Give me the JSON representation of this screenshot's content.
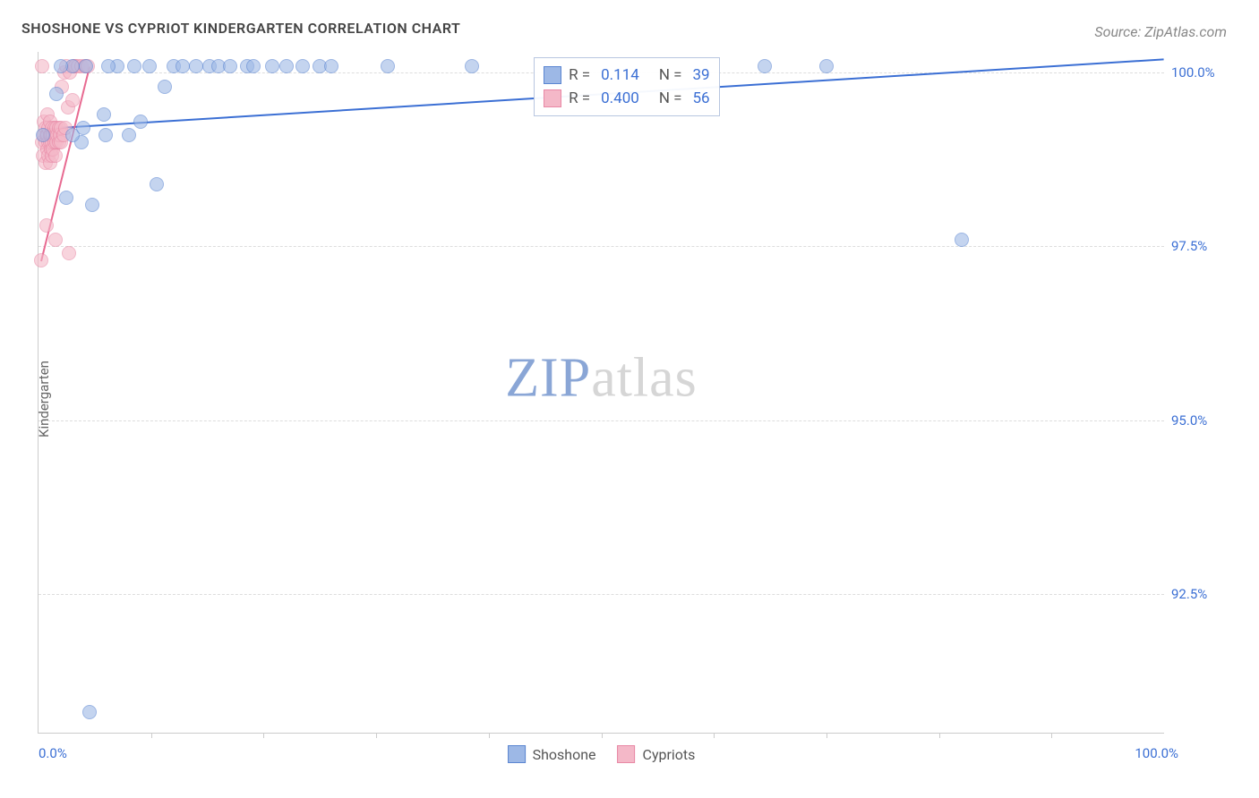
{
  "title": "SHOSHONE VS CYPRIOT KINDERGARTEN CORRELATION CHART",
  "source_label": "Source: ZipAtlas.com",
  "ylabel": "Kindergarten",
  "watermark": {
    "left": "ZIP",
    "right": "atlas",
    "color_left": "#8aa6d6",
    "color_right": "#d6d6d6"
  },
  "chart": {
    "type": "scatter",
    "xlim": [
      0,
      100
    ],
    "ylim": [
      90.5,
      100.3
    ],
    "x_unit": "%",
    "y_unit": "%",
    "x_ticks_major": [
      10,
      20,
      30,
      40,
      50,
      60,
      70,
      80,
      90
    ],
    "x_lim_labels": {
      "min": "0.0%",
      "max": "100.0%"
    },
    "y_gridlines": [
      92.5,
      95.0,
      97.5,
      100.0
    ],
    "y_tick_labels": [
      "92.5%",
      "95.0%",
      "97.5%",
      "100.0%"
    ],
    "grid_color": "#dddddd",
    "axis_color": "#cccccc",
    "tick_label_color": "#3b6fd4",
    "background_color": "#ffffff",
    "marker_radius": 8,
    "marker_opacity": 0.6,
    "series": [
      {
        "name": "Shoshone",
        "fill": "#9db8e6",
        "stroke": "#5a85d1",
        "R": "0.114",
        "N": "39",
        "trend": {
          "x1": 0.5,
          "y1": 99.2,
          "x2": 100,
          "y2": 100.2,
          "color": "#3b6fd4",
          "width": 2
        },
        "points": [
          [
            0.4,
            99.1
          ],
          [
            4.2,
            100.1
          ],
          [
            1.6,
            99.7
          ],
          [
            7.0,
            100.1
          ],
          [
            3.8,
            99.0
          ],
          [
            2.5,
            98.2
          ],
          [
            3.0,
            100.1
          ],
          [
            5.8,
            99.4
          ],
          [
            8.5,
            100.1
          ],
          [
            9.9,
            100.1
          ],
          [
            11.2,
            99.8
          ],
          [
            12.0,
            100.1
          ],
          [
            12.8,
            100.1
          ],
          [
            14.0,
            100.1
          ],
          [
            15.2,
            100.1
          ],
          [
            16.0,
            100.1
          ],
          [
            17.0,
            100.1
          ],
          [
            18.5,
            100.1
          ],
          [
            19.1,
            100.1
          ],
          [
            20.8,
            100.1
          ],
          [
            22.0,
            100.1
          ],
          [
            23.5,
            100.1
          ],
          [
            25.0,
            100.1
          ],
          [
            26.0,
            100.1
          ],
          [
            31.0,
            100.1
          ],
          [
            38.5,
            100.1
          ],
          [
            64.5,
            100.1
          ],
          [
            70.0,
            100.1
          ],
          [
            10.5,
            98.4
          ],
          [
            4.8,
            98.1
          ],
          [
            4.5,
            90.8
          ],
          [
            82.0,
            97.6
          ],
          [
            6.2,
            100.1
          ],
          [
            8.0,
            99.1
          ],
          [
            3.0,
            99.1
          ],
          [
            4.0,
            99.2
          ],
          [
            6.0,
            99.1
          ],
          [
            9.1,
            99.3
          ],
          [
            2.0,
            100.1
          ]
        ]
      },
      {
        "name": "Cypriots",
        "fill": "#f4b8c8",
        "stroke": "#e888a5",
        "R": "0.400",
        "N": "56",
        "trend": {
          "x1": 0.2,
          "y1": 97.3,
          "x2": 4.5,
          "y2": 100.1,
          "color": "#e86a91",
          "width": 2
        },
        "points": [
          [
            0.2,
            97.3
          ],
          [
            0.3,
            99.0
          ],
          [
            0.3,
            100.1
          ],
          [
            0.4,
            98.8
          ],
          [
            0.5,
            99.1
          ],
          [
            0.5,
            99.3
          ],
          [
            0.6,
            98.7
          ],
          [
            0.6,
            99.0
          ],
          [
            0.6,
            99.2
          ],
          [
            0.7,
            97.8
          ],
          [
            0.7,
            99.1
          ],
          [
            0.8,
            98.9
          ],
          [
            0.8,
            99.1
          ],
          [
            0.8,
            99.4
          ],
          [
            0.9,
            98.8
          ],
          [
            0.9,
            99.0
          ],
          [
            0.9,
            99.2
          ],
          [
            1.0,
            98.7
          ],
          [
            1.0,
            99.0
          ],
          [
            1.0,
            99.1
          ],
          [
            1.0,
            99.3
          ],
          [
            1.1,
            98.9
          ],
          [
            1.1,
            99.1
          ],
          [
            1.2,
            98.8
          ],
          [
            1.2,
            99.0
          ],
          [
            1.2,
            99.2
          ],
          [
            1.3,
            98.9
          ],
          [
            1.3,
            99.1
          ],
          [
            1.4,
            99.0
          ],
          [
            1.4,
            99.2
          ],
          [
            1.5,
            98.8
          ],
          [
            1.5,
            99.1
          ],
          [
            1.6,
            99.0
          ],
          [
            1.6,
            99.2
          ],
          [
            1.7,
            99.1
          ],
          [
            1.8,
            99.0
          ],
          [
            1.8,
            99.2
          ],
          [
            1.9,
            99.1
          ],
          [
            2.0,
            99.0
          ],
          [
            2.0,
            99.2
          ],
          [
            2.1,
            99.8
          ],
          [
            2.2,
            99.1
          ],
          [
            2.3,
            100.0
          ],
          [
            2.4,
            99.2
          ],
          [
            2.5,
            100.1
          ],
          [
            2.6,
            99.5
          ],
          [
            2.8,
            100.0
          ],
          [
            3.0,
            99.6
          ],
          [
            3.2,
            100.1
          ],
          [
            3.3,
            100.1
          ],
          [
            3.5,
            100.1
          ],
          [
            3.8,
            100.1
          ],
          [
            4.1,
            100.1
          ],
          [
            4.4,
            100.1
          ],
          [
            1.5,
            97.6
          ],
          [
            2.7,
            97.4
          ]
        ]
      }
    ]
  },
  "stats_legend": {
    "rows": [
      {
        "series": 0,
        "labels": [
          "R =",
          "N ="
        ]
      },
      {
        "series": 1,
        "labels": [
          "R =",
          "N ="
        ]
      }
    ]
  },
  "bottom_legend": [
    {
      "series": 0
    },
    {
      "series": 1
    }
  ]
}
